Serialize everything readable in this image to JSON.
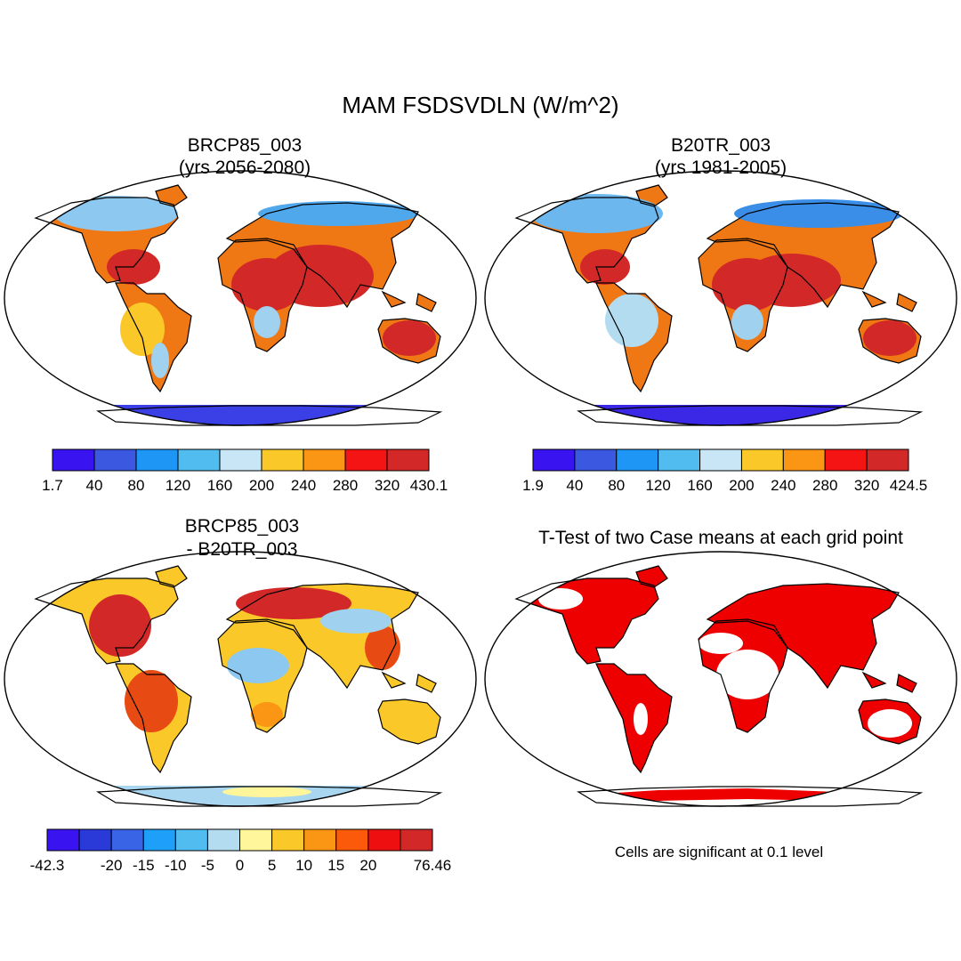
{
  "figure": {
    "title": "MAM FSDSVDLN (W/m^2)"
  },
  "panels": [
    {
      "id": "future",
      "title_line1": "BRCP85_003",
      "title_line2": "(yrs 2056-2080)",
      "colorbar": {
        "labels": [
          "1.7",
          "40",
          "80",
          "120",
          "160",
          "200",
          "240",
          "280",
          "320",
          "430.1"
        ],
        "colors": [
          "#3a14f0",
          "#3a58e0",
          "#1e96f5",
          "#50bcf0",
          "#c8e6f5",
          "#fac828",
          "#fa9614",
          "#f51414",
          "#d22828"
        ]
      }
    },
    {
      "id": "historical",
      "title_line1": "B20TR_003",
      "title_line2": "(yrs 1981-2005)",
      "colorbar": {
        "labels": [
          "1.9",
          "40",
          "80",
          "120",
          "160",
          "200",
          "240",
          "280",
          "320",
          "424.5"
        ],
        "colors": [
          "#3a14f0",
          "#3a58e0",
          "#1e96f5",
          "#50bcf0",
          "#c8e6f5",
          "#fac828",
          "#fa9614",
          "#f51414",
          "#d22828"
        ]
      }
    },
    {
      "id": "difference",
      "title_line1": "BRCP85_003",
      "title_line2": "- B20TR_003",
      "colorbar": {
        "labels": [
          "-42.3",
          "",
          "-20",
          "-15",
          "-10",
          "-5",
          "0",
          "5",
          "10",
          "15",
          "20",
          "",
          "76.46"
        ],
        "colors": [
          "#3a14f0",
          "#2a3ad8",
          "#3a64e6",
          "#1ea0fa",
          "#50bcf0",
          "#b4dcf0",
          "#fff59a",
          "#fac828",
          "#fa9614",
          "#fa5a0a",
          "#ee1010",
          "#d22828"
        ]
      }
    },
    {
      "id": "ttest",
      "title_line1": "T-Test of two Case means at each grid point",
      "note": "Cells are significant at 0.1 level",
      "significant_color": "#ee0000"
    }
  ]
}
